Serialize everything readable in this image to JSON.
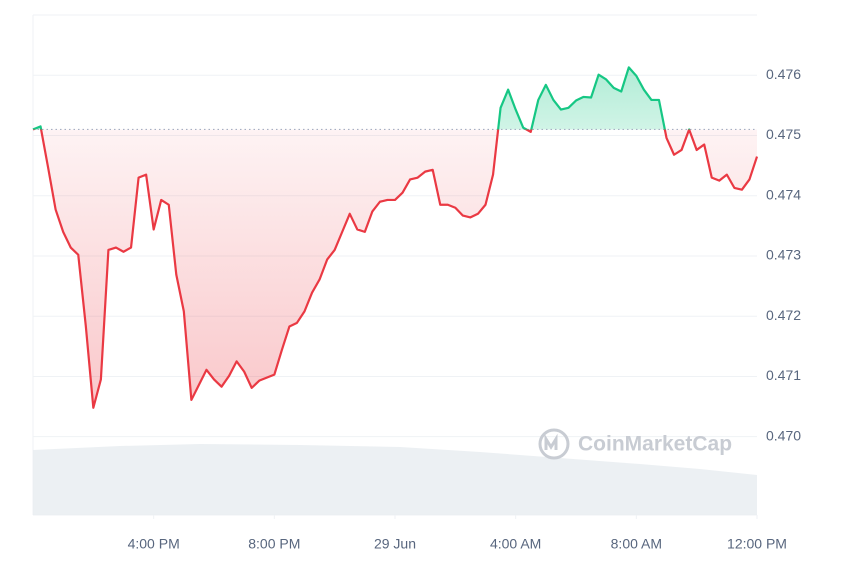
{
  "chart_data": {
    "type": "line",
    "watermark": "CoinMarketCap",
    "baseline": 0.4751,
    "up_color": "#16c784",
    "down_color": "#ea3943",
    "grid": true,
    "xlim": [
      0,
      24
    ],
    "ylim": [
      0.4687,
      0.477
    ],
    "xticks": [
      {
        "value": 4,
        "label": "4:00 PM"
      },
      {
        "value": 8,
        "label": "8:00 PM"
      },
      {
        "value": 12,
        "label": "29 Jun"
      },
      {
        "value": 16,
        "label": "4:00 AM"
      },
      {
        "value": 20,
        "label": "8:00 AM"
      },
      {
        "value": 24,
        "label": "12:00 PM"
      }
    ],
    "yticks": [
      {
        "value": 0.47,
        "label": "0.470"
      },
      0.471,
      0.472,
      0.473,
      0.474,
      0.475,
      0.476
    ],
    "x": [
      0,
      0.25,
      0.5,
      0.75,
      1,
      1.25,
      1.5,
      1.75,
      2,
      2.25,
      2.5,
      2.75,
      3,
      3.25,
      3.5,
      3.75,
      4,
      4.25,
      4.5,
      4.75,
      5,
      5.25,
      5.5,
      5.75,
      6,
      6.25,
      6.5,
      6.75,
      7,
      7.25,
      7.5,
      7.75,
      8,
      8.25,
      8.5,
      8.75,
      9,
      9.25,
      9.5,
      9.75,
      10,
      10.25,
      10.5,
      10.75,
      11,
      11.25,
      11.5,
      11.75,
      12,
      12.25,
      12.5,
      12.75,
      13,
      13.25,
      13.5,
      13.75,
      14,
      14.25,
      14.5,
      14.75,
      15,
      15.25,
      15.5,
      15.75,
      16,
      16.25,
      16.5,
      16.75,
      17,
      17.25,
      17.5,
      17.75,
      18,
      18.25,
      18.5,
      18.75,
      19,
      19.25,
      19.5,
      19.75,
      20,
      20.25,
      20.5,
      20.75,
      21,
      21.25,
      21.5,
      21.75,
      22,
      22.25,
      22.5,
      22.75,
      23,
      23.25,
      23.5,
      23.75,
      24
    ],
    "values": [
      0.4751,
      0.47515,
      0.47447,
      0.47377,
      0.4734,
      0.47314,
      0.47302,
      0.47184,
      0.47048,
      0.47095,
      0.4731,
      0.47314,
      0.47307,
      0.47314,
      0.4743,
      0.47435,
      0.47344,
      0.47393,
      0.47385,
      0.47269,
      0.47208,
      0.47061,
      0.47086,
      0.47111,
      0.47095,
      0.47083,
      0.47101,
      0.47125,
      0.47108,
      0.47081,
      0.47093,
      0.47098,
      0.47103,
      0.47144,
      0.47183,
      0.47189,
      0.47208,
      0.47239,
      0.47261,
      0.47294,
      0.4731,
      0.4734,
      0.4737,
      0.47344,
      0.4734,
      0.47374,
      0.4739,
      0.47393,
      0.47393,
      0.47405,
      0.47427,
      0.4743,
      0.4744,
      0.47443,
      0.47385,
      0.47385,
      0.4738,
      0.47367,
      0.47364,
      0.4737,
      0.47385,
      0.47435,
      0.47546,
      0.47576,
      0.47543,
      0.47513,
      0.47506,
      0.47559,
      0.47584,
      0.47559,
      0.47543,
      0.47546,
      0.47558,
      0.47564,
      0.47563,
      0.47601,
      0.47593,
      0.47579,
      0.47573,
      0.47613,
      0.47599,
      0.47576,
      0.47559,
      0.47559,
      0.47496,
      0.47468,
      0.47476,
      0.4751,
      0.47476,
      0.47485,
      0.4743,
      0.47425,
      0.47435,
      0.47413,
      0.4741,
      0.47427,
      0.47465
    ]
  }
}
